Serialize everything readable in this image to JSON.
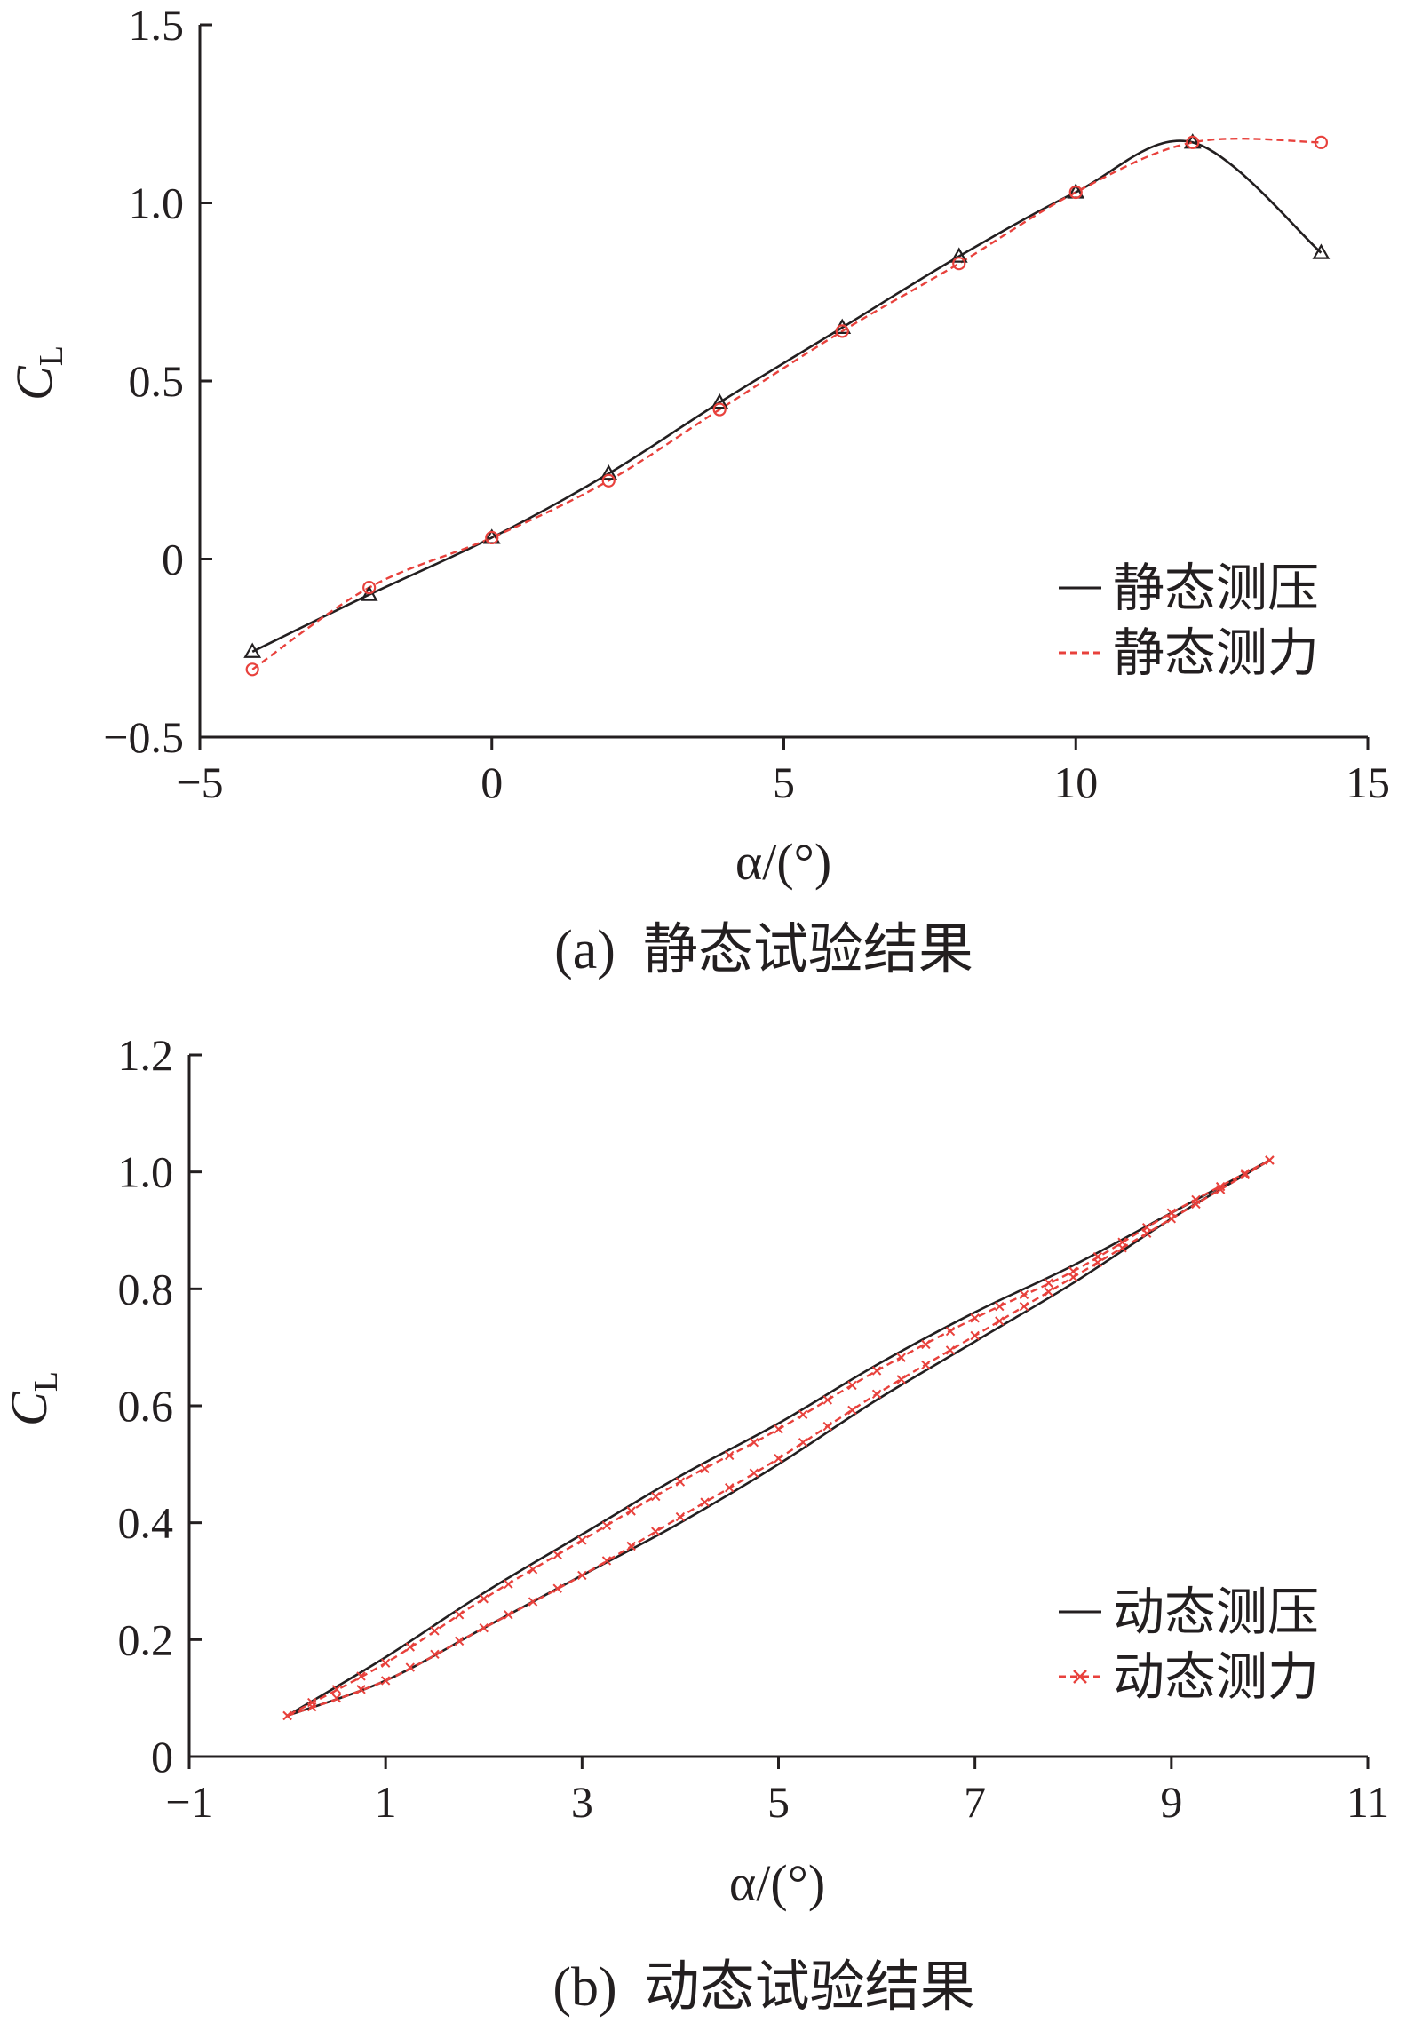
{
  "chart_data": [
    {
      "type": "line",
      "caption": "(a)  静态试验结果",
      "xlabel": "α/(°)",
      "ylabel": "CL",
      "xlim": [
        -5,
        15
      ],
      "ylim": [
        -0.5,
        1.5
      ],
      "xticks": [
        -5,
        0,
        5,
        10,
        15
      ],
      "xtick_labels": [
        "−5",
        "0",
        "5",
        "10",
        "15"
      ],
      "yticks": [
        -0.5,
        0,
        0.5,
        1.0,
        1.5
      ],
      "ytick_labels": [
        "−0.5",
        "0",
        "0.5",
        "1.0",
        "1.5"
      ],
      "grid": false,
      "legend_position": "bottom-right",
      "series": [
        {
          "name": "静态测压",
          "color": "#231f20",
          "line_style": "solid",
          "marker": "triangle",
          "x": [
            -4.1,
            -2.1,
            0.0,
            2.0,
            3.9,
            6.0,
            8.0,
            10.0,
            12.0,
            14.2
          ],
          "y": [
            -0.26,
            -0.1,
            0.06,
            0.24,
            0.44,
            0.65,
            0.85,
            1.03,
            1.17,
            0.86
          ]
        },
        {
          "name": "静态测力",
          "color": "#e8413c",
          "line_style": "dashed",
          "marker": "circle",
          "x": [
            -4.1,
            -2.1,
            0.0,
            2.0,
            3.9,
            6.0,
            8.0,
            10.0,
            12.0,
            14.2
          ],
          "y": [
            -0.31,
            -0.08,
            0.06,
            0.22,
            0.42,
            0.64,
            0.83,
            1.03,
            1.17,
            1.17
          ]
        }
      ]
    },
    {
      "type": "line",
      "caption": "(b)  动态试验结果",
      "xlabel": "α/(°)",
      "ylabel": "CL",
      "xlim": [
        -1,
        11
      ],
      "ylim": [
        0,
        1.2
      ],
      "xticks": [
        -1,
        1,
        3,
        5,
        7,
        9,
        11
      ],
      "xtick_labels": [
        "−1",
        "1",
        "3",
        "5",
        "7",
        "9",
        "11"
      ],
      "yticks": [
        0,
        0.2,
        0.4,
        0.6,
        0.8,
        1.0,
        1.2
      ],
      "ytick_labels": [
        "0",
        "0.2",
        "0.4",
        "0.6",
        "0.8",
        "1.0",
        "1.2"
      ],
      "grid": false,
      "legend_position": "bottom-right",
      "series": [
        {
          "name": "动态测压",
          "color": "#231f20",
          "line_style": "solid",
          "marker": "none",
          "upstroke": {
            "x": [
              0.0,
              1.0,
              2.0,
              3.0,
              4.0,
              5.0,
              6.0,
              7.0,
              8.0,
              9.0,
              10.0
            ],
            "y": [
              0.07,
              0.13,
              0.22,
              0.31,
              0.4,
              0.5,
              0.61,
              0.71,
              0.81,
              0.92,
              1.02
            ]
          },
          "downstroke": {
            "x": [
              10.0,
              9.0,
              8.0,
              7.0,
              6.0,
              5.0,
              4.0,
              3.0,
              2.0,
              1.0,
              0.0
            ],
            "y": [
              1.02,
              0.93,
              0.84,
              0.76,
              0.67,
              0.57,
              0.48,
              0.38,
              0.28,
              0.17,
              0.07
            ]
          }
        },
        {
          "name": "动态测力",
          "color": "#e8413c",
          "line_style": "dashed",
          "marker": "x",
          "upstroke": {
            "x": [
              0.0,
              1.0,
              2.0,
              3.0,
              4.0,
              5.0,
              6.0,
              7.0,
              8.0,
              9.0,
              10.0
            ],
            "y": [
              0.07,
              0.13,
              0.22,
              0.31,
              0.41,
              0.51,
              0.62,
              0.72,
              0.82,
              0.92,
              1.02
            ]
          },
          "downstroke": {
            "x": [
              10.0,
              9.0,
              8.0,
              7.0,
              6.0,
              5.0,
              4.0,
              3.0,
              2.0,
              1.0,
              0.0
            ],
            "y": [
              1.02,
              0.93,
              0.83,
              0.75,
              0.66,
              0.56,
              0.47,
              0.37,
              0.27,
              0.16,
              0.07
            ]
          }
        }
      ]
    }
  ]
}
